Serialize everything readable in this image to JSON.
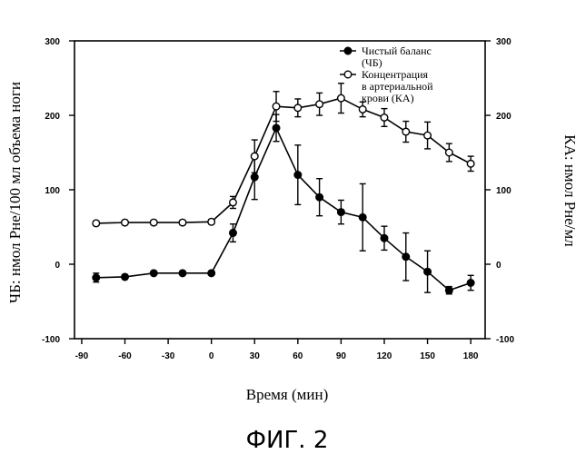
{
  "chart_data": {
    "type": "line",
    "xlabel": "Время (мин)",
    "ylabel_left": "ЧБ: нмол Рне/100 мл объема ноги",
    "ylabel_right": "КА: нмол Рне/мл",
    "caption": "ФИГ. 2",
    "xlim": [
      -95,
      190
    ],
    "ylim": [
      -100,
      300
    ],
    "x_ticks": [
      -90,
      -60,
      -30,
      0,
      30,
      60,
      90,
      120,
      150,
      180
    ],
    "y_ticks": [
      -100,
      0,
      100,
      200,
      300
    ],
    "grid": false,
    "legend_position": "top-right",
    "series": [
      {
        "name": "Чистый баланс (ЧБ)",
        "legend_lines": [
          "Чистый баланс",
          "(ЧБ)"
        ],
        "marker": "filled-circle",
        "x": [
          -80,
          -60,
          -40,
          -20,
          0,
          15,
          30,
          45,
          60,
          75,
          90,
          105,
          120,
          135,
          150,
          165,
          180
        ],
        "y": [
          -18,
          -17,
          -12,
          -12,
          -12,
          42,
          117,
          183,
          120,
          90,
          70,
          63,
          35,
          10,
          -10,
          -35,
          -25
        ],
        "err": [
          6,
          3,
          2,
          2,
          2,
          12,
          30,
          18,
          40,
          25,
          16,
          45,
          16,
          32,
          28,
          5,
          10
        ]
      },
      {
        "name": "Концентрация в артериальной крови (КА)",
        "legend_lines": [
          "Концентрация",
          "в артериальной",
          "крови (КА)"
        ],
        "marker": "open-circle",
        "x": [
          -80,
          -60,
          -40,
          -20,
          0,
          15,
          30,
          45,
          60,
          75,
          90,
          105,
          120,
          135,
          150,
          165,
          180
        ],
        "y": [
          55,
          56,
          56,
          56,
          57,
          83,
          145,
          212,
          210,
          215,
          223,
          208,
          197,
          178,
          173,
          150,
          135
        ],
        "err": [
          3,
          3,
          3,
          3,
          3,
          8,
          22,
          20,
          12,
          15,
          20,
          10,
          12,
          14,
          18,
          12,
          10
        ]
      }
    ]
  }
}
